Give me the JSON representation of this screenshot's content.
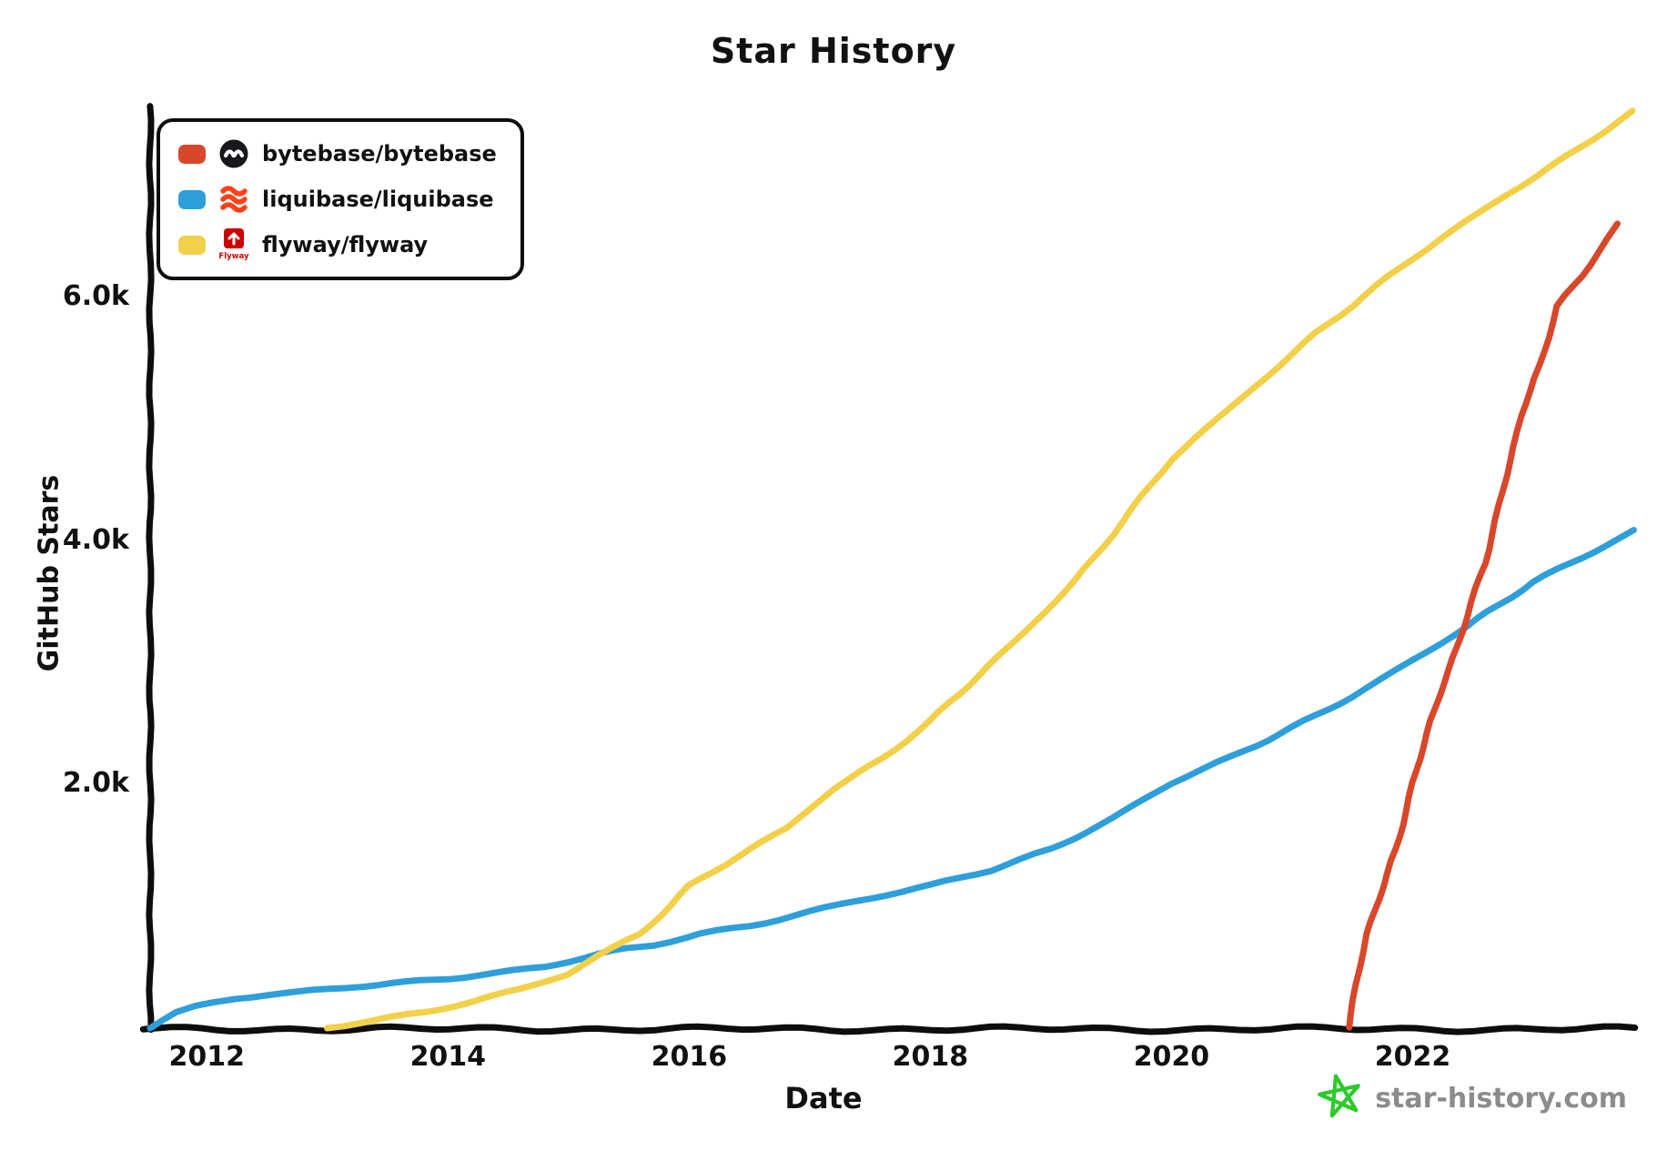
{
  "title": "Star History",
  "footer": {
    "site_label": "star-history.com",
    "star_icon_color": "#2BCB2B",
    "text_color": "#8C8C8C"
  },
  "chart_data": {
    "type": "line",
    "title": "Star History",
    "xlabel": "Date",
    "ylabel": "GitHub Stars",
    "xlim": [
      2011.53,
      2023.83
    ],
    "ylim": [
      0,
      7560
    ],
    "grid": false,
    "legend_position": "top-left",
    "axis_color": "#0d0d0d",
    "x_ticks": [
      {
        "value": 2012,
        "label": "2012"
      },
      {
        "value": 2014,
        "label": "2014"
      },
      {
        "value": 2016,
        "label": "2016"
      },
      {
        "value": 2018,
        "label": "2018"
      },
      {
        "value": 2020,
        "label": "2020"
      },
      {
        "value": 2022,
        "label": "2022"
      }
    ],
    "y_ticks": [
      {
        "value": 2000,
        "label": "2.0k"
      },
      {
        "value": 4000,
        "label": "4.0k"
      },
      {
        "value": 6000,
        "label": "6.0k"
      }
    ],
    "logos": {
      "bytebase": {
        "bg": "#17181c",
        "fg": "#ffffff"
      },
      "liquibase": {
        "color": "#FF4018"
      },
      "flyway": {
        "color": "#CB0200",
        "label": "Flyway"
      }
    },
    "series": [
      {
        "name": "bytebase/bytebase",
        "color": "#D9472B",
        "logo": "bytebase",
        "points": [
          [
            2021.47,
            0
          ],
          [
            2021.53,
            350
          ],
          [
            2021.62,
            750
          ],
          [
            2021.72,
            1050
          ],
          [
            2021.86,
            1450
          ],
          [
            2022.0,
            2000
          ],
          [
            2022.15,
            2520
          ],
          [
            2022.3,
            2920
          ],
          [
            2022.45,
            3370
          ],
          [
            2022.6,
            3820
          ],
          [
            2022.75,
            4420
          ],
          [
            2022.9,
            5020
          ],
          [
            2023.05,
            5420
          ],
          [
            2023.2,
            5920
          ],
          [
            2023.4,
            6180
          ],
          [
            2023.7,
            6600
          ]
        ]
      },
      {
        "name": "liquibase/liquibase",
        "color": "#2E9FDA",
        "logo": "liquibase",
        "points": [
          [
            2011.53,
            0
          ],
          [
            2011.62,
            50
          ],
          [
            2011.75,
            120
          ],
          [
            2011.9,
            165
          ],
          [
            2012.05,
            195
          ],
          [
            2012.25,
            235
          ],
          [
            2012.5,
            258
          ],
          [
            2012.75,
            272
          ],
          [
            2013.0,
            300
          ],
          [
            2013.3,
            330
          ],
          [
            2013.65,
            360
          ],
          [
            2014.0,
            400
          ],
          [
            2014.4,
            445
          ],
          [
            2014.8,
            490
          ],
          [
            2015.25,
            590
          ],
          [
            2015.7,
            665
          ],
          [
            2016.1,
            760
          ],
          [
            2016.5,
            830
          ],
          [
            2017.0,
            950
          ],
          [
            2017.5,
            1055
          ],
          [
            2018.0,
            1150
          ],
          [
            2018.5,
            1285
          ],
          [
            2019.0,
            1460
          ],
          [
            2019.5,
            1710
          ],
          [
            2020.0,
            2000
          ],
          [
            2020.5,
            2210
          ],
          [
            2021.0,
            2460
          ],
          [
            2021.5,
            2720
          ],
          [
            2022.0,
            3010
          ],
          [
            2022.45,
            3280
          ],
          [
            2023.0,
            3660
          ],
          [
            2023.4,
            3860
          ],
          [
            2023.83,
            4080
          ]
        ]
      },
      {
        "name": "flyway/flyway",
        "color": "#F3D04A",
        "logo": "flyway",
        "points": [
          [
            2013.0,
            0
          ],
          [
            2013.4,
            50
          ],
          [
            2013.8,
            115
          ],
          [
            2014.2,
            195
          ],
          [
            2014.6,
            300
          ],
          [
            2015.0,
            435
          ],
          [
            2015.25,
            590
          ],
          [
            2015.6,
            770
          ],
          [
            2016.0,
            1150
          ],
          [
            2016.4,
            1390
          ],
          [
            2016.8,
            1620
          ],
          [
            2017.2,
            1960
          ],
          [
            2017.6,
            2210
          ],
          [
            2018.0,
            2510
          ],
          [
            2018.4,
            2880
          ],
          [
            2018.8,
            3260
          ],
          [
            2019.2,
            3670
          ],
          [
            2019.6,
            4160
          ],
          [
            2020.0,
            4660
          ],
          [
            2020.4,
            5010
          ],
          [
            2020.8,
            5360
          ],
          [
            2021.2,
            5710
          ],
          [
            2021.6,
            6010
          ],
          [
            2022.0,
            6310
          ],
          [
            2022.4,
            6590
          ],
          [
            2022.8,
            6860
          ],
          [
            2023.2,
            7110
          ],
          [
            2023.5,
            7310
          ],
          [
            2023.83,
            7520
          ]
        ]
      }
    ],
    "draw_order": [
      "liquibase/liquibase",
      "flyway/flyway",
      "bytebase/bytebase"
    ]
  }
}
